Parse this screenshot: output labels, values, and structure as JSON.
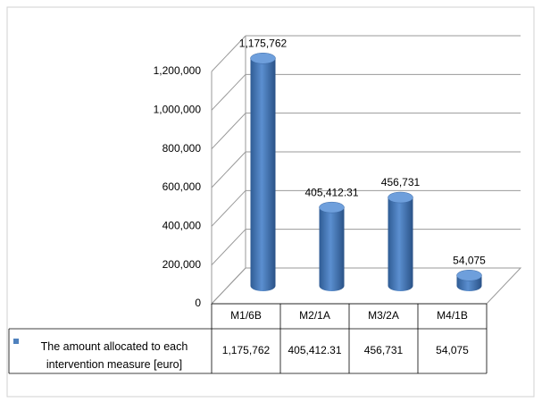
{
  "chart_data": {
    "type": "bar",
    "categories": [
      "M1/6B",
      "M2/1A",
      "M3/2A",
      "M4/1B"
    ],
    "series": [
      {
        "name": "The amount allocated to each intervention measure [euro]",
        "color": "#4f81bd",
        "values": [
          1175762,
          405412.31,
          456731,
          54075
        ],
        "value_labels": [
          "1,175,762",
          "405,412.31",
          "456,731",
          "54,075"
        ]
      }
    ],
    "ylim": [
      0,
      1200000
    ],
    "yticks": [
      0,
      {
        "value": 200000,
        "label": "200,000"
      },
      {
        "value": 400000,
        "label": "400,000"
      },
      {
        "value": 600000,
        "label": "600,000"
      },
      {
        "value": 800000,
        "label": "800,000"
      },
      {
        "value": 1000000,
        "label": "1,000,000"
      },
      {
        "value": 1200000,
        "label": "1,200,000"
      }
    ],
    "grid": true,
    "data_table": true
  }
}
